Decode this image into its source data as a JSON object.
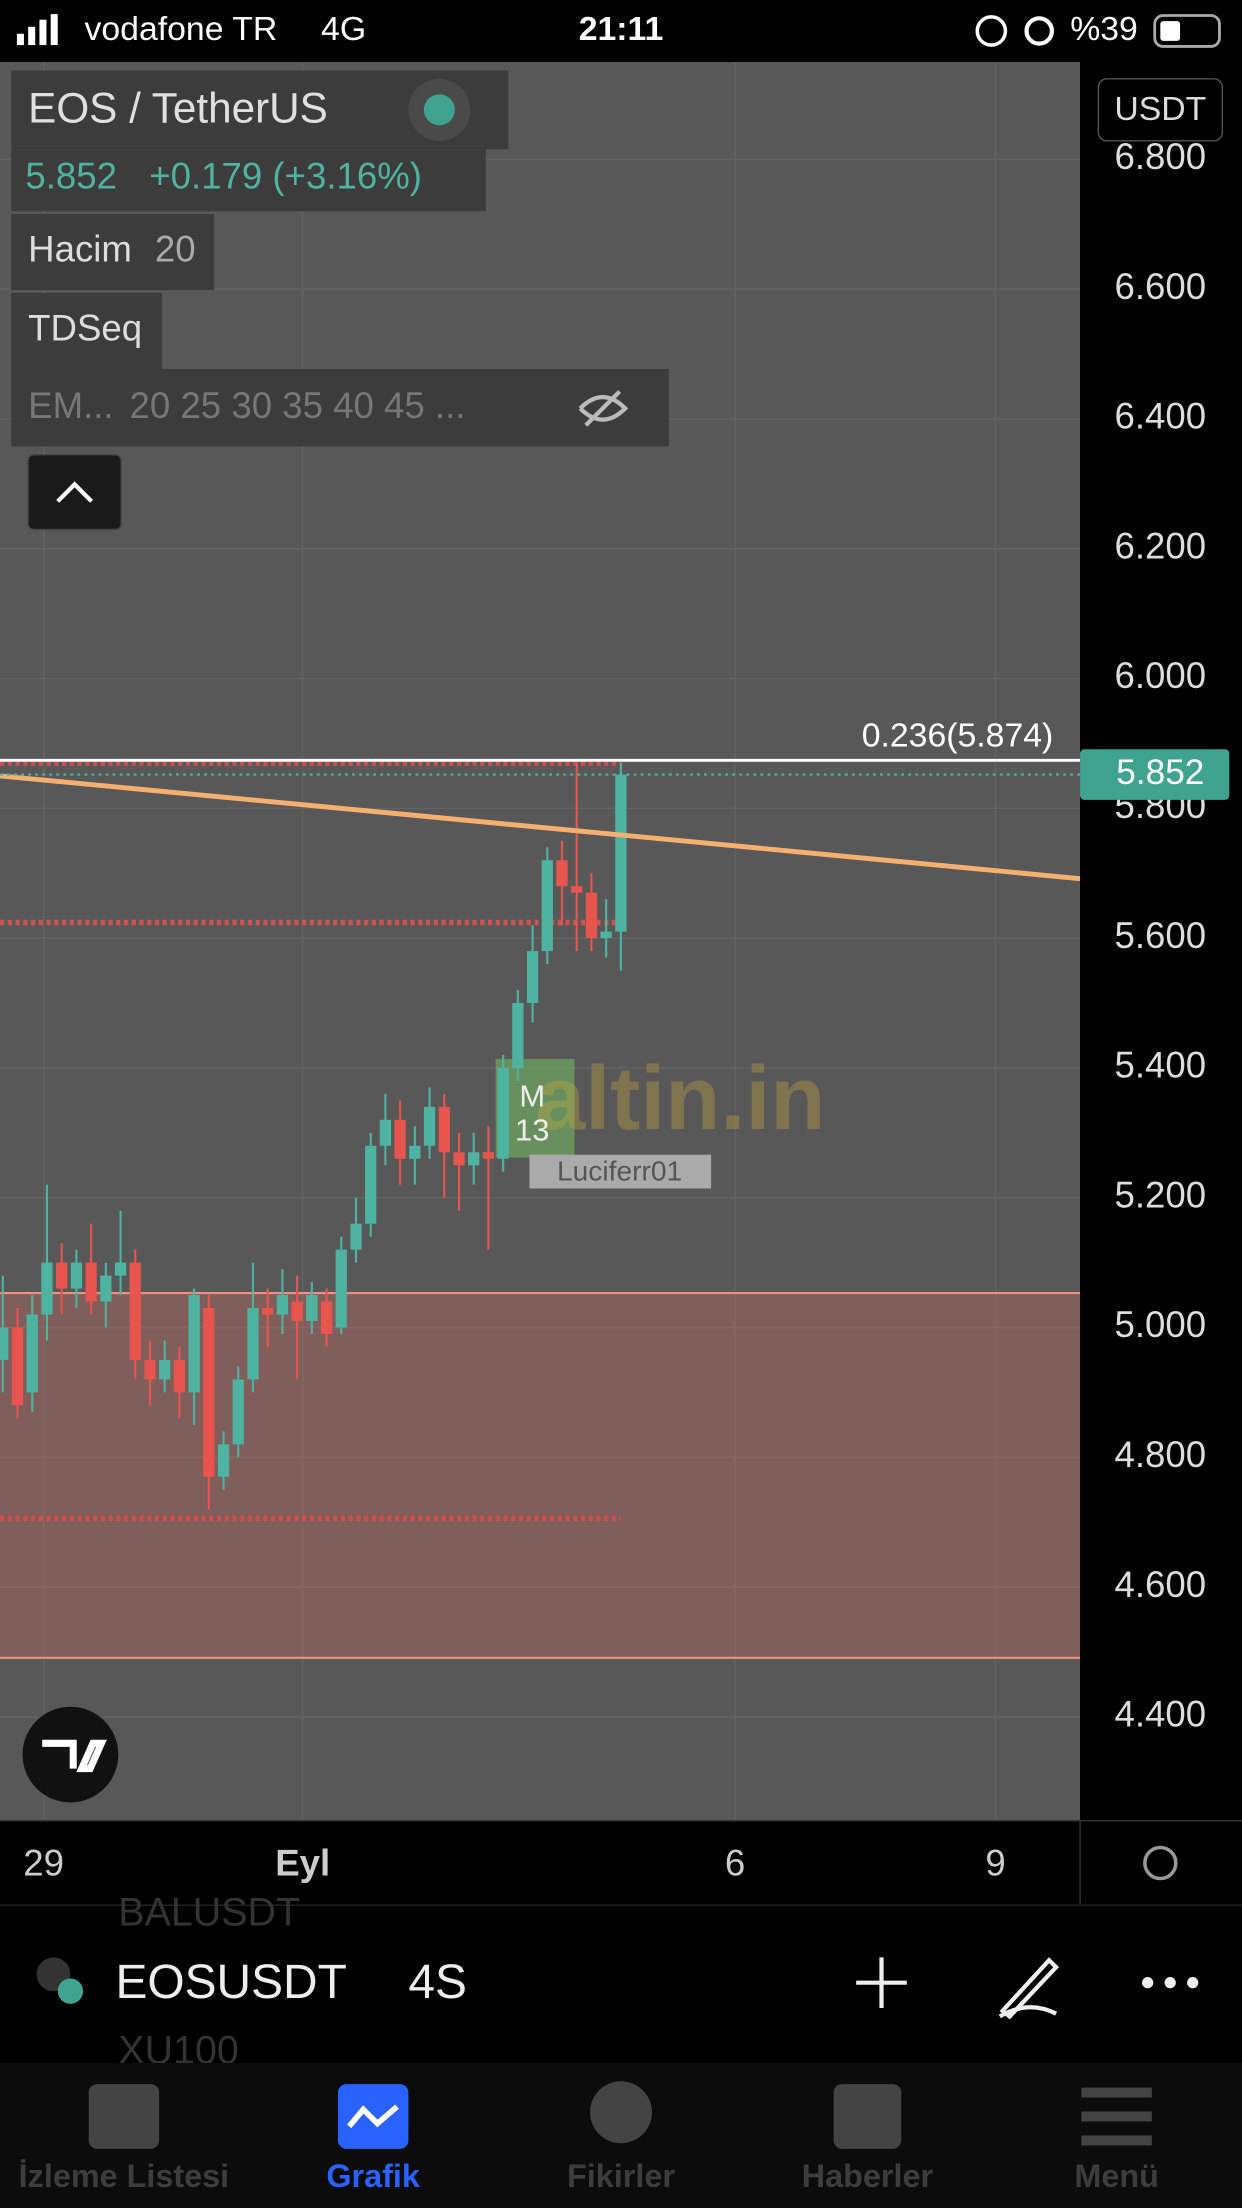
{
  "status_bar": {
    "carrier": "vodafone TR",
    "network": "4G",
    "time": "21:11",
    "battery": "%39"
  },
  "header": {
    "symbol": "EOS / TetherUS",
    "price": "5.852",
    "change": "+0.179 (+3.16%)",
    "volume_label": "Hacim",
    "volume_len": "20",
    "indicator": "TDSeq",
    "ema_label": "EM...",
    "ema_params": "20 25 30 35 40 45 ..."
  },
  "chart_data": {
    "type": "candlestick",
    "currency": "USDT",
    "up_color": "#4fb3a1",
    "down_color": "#e8554e",
    "ylim": [
      4.24,
      6.95
    ],
    "yticks": [
      {
        "value": 4.4,
        "label": "4.400"
      },
      {
        "value": 4.6,
        "label": "4.600"
      },
      {
        "value": 4.8,
        "label": "4.800"
      },
      {
        "value": 5,
        "label": "5.000"
      },
      {
        "value": 5.2,
        "label": "5.200"
      },
      {
        "value": 5.4,
        "label": "5.400"
      },
      {
        "value": 5.6,
        "label": "5.600"
      },
      {
        "value": 5.8,
        "label": "5.800"
      },
      {
        "value": 6,
        "label": "6.000"
      },
      {
        "value": 6.2,
        "label": "6.200"
      },
      {
        "value": 6.4,
        "label": "6.400"
      },
      {
        "value": 6.6,
        "label": "6.600"
      },
      {
        "value": 6.8,
        "label": "6.800"
      }
    ],
    "x_labels": [
      "29",
      "Eyl",
      "6",
      "9"
    ],
    "fib_level": 5.874,
    "fib_label": "0.236(5.874)",
    "zone": [
      4.491,
      5.053
    ],
    "dotted_levels": [
      5.87,
      5.624,
      4.706
    ],
    "candles": [
      {
        "open": 4.95,
        "high": 5.08,
        "low": 4.9,
        "close": 5.0
      },
      {
        "open": 5.0,
        "high": 5.03,
        "low": 4.86,
        "close": 4.88
      },
      {
        "open": 4.9,
        "high": 5.05,
        "low": 4.87,
        "close": 5.02
      },
      {
        "open": 5.02,
        "high": 5.22,
        "low": 4.98,
        "close": 5.1
      },
      {
        "open": 5.1,
        "high": 5.13,
        "low": 5.02,
        "close": 5.06
      },
      {
        "open": 5.06,
        "high": 5.12,
        "low": 5.03,
        "close": 5.1
      },
      {
        "open": 5.1,
        "high": 5.16,
        "low": 5.02,
        "close": 5.04
      },
      {
        "open": 5.04,
        "high": 5.1,
        "low": 5.0,
        "close": 5.08
      },
      {
        "open": 5.08,
        "high": 5.18,
        "low": 5.05,
        "close": 5.1
      },
      {
        "open": 5.1,
        "high": 5.12,
        "low": 4.92,
        "close": 4.95
      },
      {
        "open": 4.95,
        "high": 4.98,
        "low": 4.88,
        "close": 4.92
      },
      {
        "open": 4.92,
        "high": 4.98,
        "low": 4.9,
        "close": 4.95
      },
      {
        "open": 4.95,
        "high": 4.97,
        "low": 4.86,
        "close": 4.9
      },
      {
        "open": 4.9,
        "high": 5.06,
        "low": 4.85,
        "close": 5.05
      },
      {
        "open": 5.03,
        "high": 5.05,
        "low": 4.72,
        "close": 4.77
      },
      {
        "open": 4.77,
        "high": 4.84,
        "low": 4.75,
        "close": 4.82
      },
      {
        "open": 4.82,
        "high": 4.94,
        "low": 4.8,
        "close": 4.92
      },
      {
        "open": 4.92,
        "high": 5.1,
        "low": 4.9,
        "close": 5.03
      },
      {
        "open": 5.03,
        "high": 5.06,
        "low": 4.97,
        "close": 5.02
      },
      {
        "open": 5.02,
        "high": 5.09,
        "low": 4.99,
        "close": 5.05
      },
      {
        "open": 5.04,
        "high": 5.08,
        "low": 4.92,
        "close": 5.01
      },
      {
        "open": 5.01,
        "high": 5.07,
        "low": 4.99,
        "close": 5.05
      },
      {
        "open": 5.04,
        "high": 5.06,
        "low": 4.97,
        "close": 4.99
      },
      {
        "open": 5.0,
        "high": 5.14,
        "low": 4.99,
        "close": 5.12
      },
      {
        "open": 5.12,
        "high": 5.2,
        "low": 5.1,
        "close": 5.16
      },
      {
        "open": 5.16,
        "high": 5.3,
        "low": 5.14,
        "close": 5.28
      },
      {
        "open": 5.28,
        "high": 5.36,
        "low": 5.25,
        "close": 5.32
      },
      {
        "open": 5.32,
        "high": 5.35,
        "low": 5.22,
        "close": 5.26
      },
      {
        "open": 5.26,
        "high": 5.31,
        "low": 5.22,
        "close": 5.28
      },
      {
        "open": 5.28,
        "high": 5.37,
        "low": 5.26,
        "close": 5.34
      },
      {
        "open": 5.34,
        "high": 5.36,
        "low": 5.2,
        "close": 5.27
      },
      {
        "open": 5.27,
        "high": 5.3,
        "low": 5.18,
        "close": 5.25
      },
      {
        "open": 5.25,
        "high": 5.3,
        "low": 5.22,
        "close": 5.27
      },
      {
        "open": 5.27,
        "high": 5.31,
        "low": 5.12,
        "close": 5.26
      },
      {
        "open": 5.26,
        "high": 5.42,
        "low": 5.24,
        "close": 5.4
      },
      {
        "open": 5.4,
        "high": 5.52,
        "low": 5.38,
        "close": 5.5
      },
      {
        "open": 5.5,
        "high": 5.62,
        "low": 5.47,
        "close": 5.58
      },
      {
        "open": 5.58,
        "high": 5.74,
        "low": 5.56,
        "close": 5.72
      },
      {
        "open": 5.72,
        "high": 5.75,
        "low": 5.62,
        "close": 5.68
      },
      {
        "open": 5.68,
        "high": 5.87,
        "low": 5.58,
        "close": 5.67
      },
      {
        "open": 5.67,
        "high": 5.7,
        "low": 5.58,
        "close": 5.6
      },
      {
        "open": 5.6,
        "high": 5.66,
        "low": 5.57,
        "close": 5.61
      },
      {
        "open": 5.61,
        "high": 5.87,
        "low": 5.55,
        "close": 5.852
      }
    ]
  },
  "watermark": {
    "line1": "M",
    "line2": "13",
    "user": "Luciferr01",
    "site": "altin.in"
  },
  "toolbar": {
    "symbol": "EOSUSDT",
    "interval": "4S",
    "behind_above": "BALUSDT",
    "behind_below": "XU100"
  },
  "tabs": [
    "İzleme Listesi",
    "Grafik",
    "Fikirler",
    "Haberler",
    "Menü"
  ]
}
